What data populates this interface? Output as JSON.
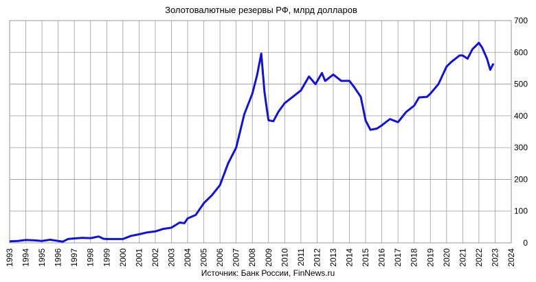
{
  "chart_data": {
    "type": "line",
    "title": "Золотовалютные резервы РФ, млрд долларов",
    "source": "Источник: Банк России, FinNews.ru",
    "xlim": [
      1993,
      2024
    ],
    "xticks": [
      1993,
      1994,
      1995,
      1996,
      1997,
      1998,
      1999,
      2000,
      2001,
      2002,
      2003,
      2004,
      2005,
      2006,
      2007,
      2008,
      2009,
      2010,
      2011,
      2012,
      2013,
      2014,
      2015,
      2016,
      2017,
      2018,
      2019,
      2020,
      2021,
      2022,
      2023,
      2024
    ],
    "ylim": [
      0,
      700
    ],
    "yticks": [
      0,
      100,
      200,
      300,
      400,
      500,
      600,
      700
    ],
    "grid": true,
    "series": [
      {
        "color": "#1010e0",
        "x": [
          1993.0,
          1993.5,
          1994.0,
          1994.5,
          1995.0,
          1995.5,
          1996.0,
          1996.3,
          1996.6,
          1997.0,
          1997.5,
          1998.0,
          1998.5,
          1998.8,
          1999.0,
          1999.5,
          2000.0,
          2000.5,
          2001.0,
          2001.5,
          2002.0,
          2002.5,
          2003.0,
          2003.5,
          2003.8,
          2004.0,
          2004.5,
          2005.0,
          2005.5,
          2006.0,
          2006.5,
          2007.0,
          2007.5,
          2008.0,
          2008.3,
          2008.55,
          2008.75,
          2008.9,
          2009.0,
          2009.3,
          2009.6,
          2010.0,
          2010.5,
          2011.0,
          2011.5,
          2011.9,
          2012.3,
          2012.5,
          2013.0,
          2013.5,
          2014.0,
          2014.3,
          2014.7,
          2015.0,
          2015.3,
          2015.7,
          2016.0,
          2016.5,
          2017.0,
          2017.5,
          2018.0,
          2018.3,
          2018.8,
          2019.0,
          2019.5,
          2020.0,
          2020.3,
          2020.8,
          2021.0,
          2021.3,
          2021.6,
          2022.0,
          2022.2,
          2022.5,
          2022.7,
          2022.9
        ],
        "values": [
          5,
          6,
          9,
          8,
          6,
          10,
          6,
          4,
          12,
          14,
          16,
          15,
          20,
          13,
          12,
          12,
          12,
          22,
          27,
          33,
          36,
          44,
          48,
          64,
          62,
          77,
          88,
          125,
          150,
          182,
          250,
          300,
          405,
          470,
          530,
          596,
          475,
          420,
          386,
          383,
          412,
          440,
          460,
          480,
          524,
          500,
          535,
          510,
          530,
          510,
          510,
          490,
          460,
          385,
          356,
          360,
          370,
          390,
          380,
          412,
          432,
          458,
          460,
          470,
          500,
          555,
          570,
          590,
          590,
          580,
          610,
          630,
          615,
          580,
          545,
          565
        ]
      }
    ]
  }
}
